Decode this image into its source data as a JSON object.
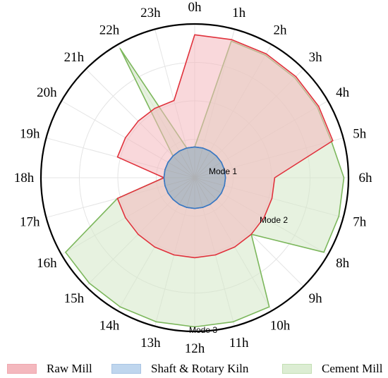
{
  "chart_data": {
    "type": "radar",
    "categories": [
      "0h",
      "1h",
      "2h",
      "3h",
      "4h",
      "5h",
      "6h",
      "7h",
      "8h",
      "9h",
      "10h",
      "11h",
      "12h",
      "13h",
      "14h",
      "15h",
      "16h",
      "17h",
      "18h",
      "19h",
      "20h",
      "21h",
      "22h",
      "23h"
    ],
    "r_max": 1.0,
    "series": [
      {
        "name": "Raw Mill",
        "color": "#e0323c",
        "fill": "#f4b8be",
        "values": [
          0.93,
          0.93,
          0.93,
          0.93,
          0.93,
          0.93,
          0.52,
          0.52,
          0.52,
          0.52,
          0.52,
          0.52,
          0.52,
          0.52,
          0.52,
          0.52,
          0.52,
          0.52,
          0.2,
          0.52,
          0.52,
          0.52,
          0.52,
          0.52
        ]
      },
      {
        "name": "Shaft & Rotary Kiln",
        "color": "#3a78c2",
        "fill": "#a9c5e4",
        "values": [
          0.2,
          0.2,
          0.2,
          0.2,
          0.2,
          0.2,
          0.2,
          0.2,
          0.2,
          0.2,
          0.2,
          0.2,
          0.2,
          0.2,
          0.2,
          0.2,
          0.2,
          0.2,
          0.2,
          0.2,
          0.2,
          0.2,
          0.2,
          0.2
        ]
      },
      {
        "name": "Cement Mill",
        "color": "#7cb75c",
        "fill": "#d3e8c7",
        "values": [
          0.2,
          0.92,
          0.92,
          0.92,
          0.92,
          0.92,
          0.97,
          0.97,
          0.97,
          0.52,
          0.97,
          0.97,
          0.97,
          0.97,
          0.97,
          0.97,
          0.97,
          0.52,
          0.2,
          0.2,
          0.2,
          0.2,
          0.97,
          0.2
        ]
      }
    ],
    "annotations": [
      {
        "text": "Mode 1",
        "angle_deg": 0,
        "radius": 0.0
      },
      {
        "text": "Mode 2",
        "angle_deg": 0,
        "radius": 0.0
      },
      {
        "text": "Mode 3",
        "angle_deg": 0,
        "radius": 0.0
      }
    ],
    "grid": true,
    "legend_position": "bottom"
  }
}
